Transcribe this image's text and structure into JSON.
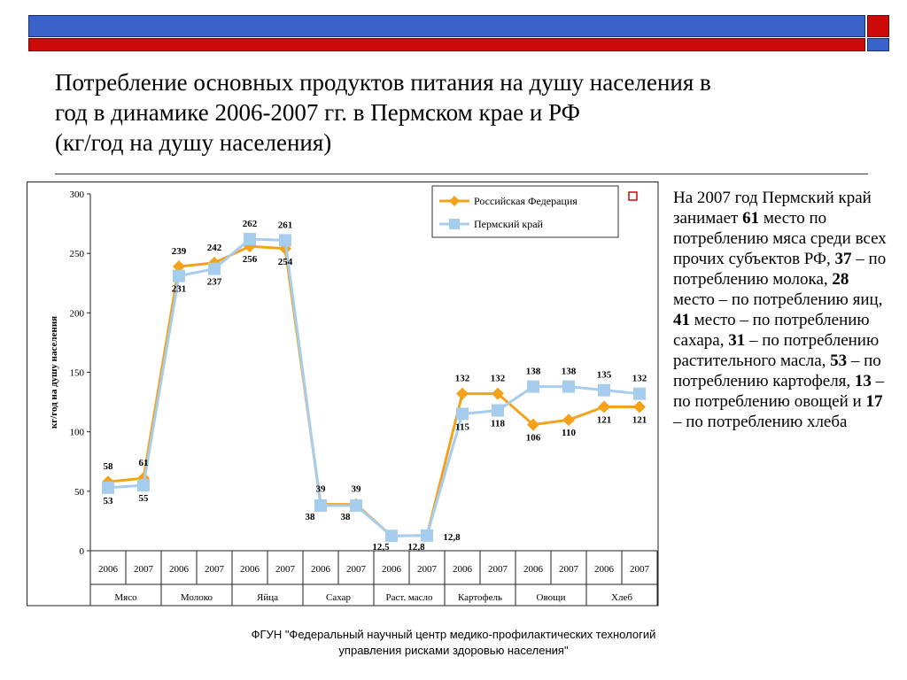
{
  "header": {
    "title_lines": [
      "Потребление основных продуктов питания на душу населения в",
      "год в динамике 2006-2007 гг. в Пермском крае и РФ",
      "(кг/год на душу населения)"
    ]
  },
  "colors": {
    "band_blue": "#3a63c9",
    "band_red": "#cc0a0a",
    "rf_series": "#f5a21b",
    "perm_series": "#a7cdee"
  },
  "chart_data": {
    "type": "line",
    "ylabel": "кг/год на душу населения",
    "ylim": [
      0,
      300
    ],
    "yticks": [
      0,
      50,
      100,
      150,
      200,
      250,
      300
    ],
    "grid": false,
    "legend_position": "top-right",
    "years": [
      "2006",
      "2007",
      "2006",
      "2007",
      "2006",
      "2007",
      "2006",
      "2007",
      "2006",
      "2007",
      "2006",
      "2007",
      "2006",
      "2007",
      "2006",
      "2007"
    ],
    "groups": [
      "Мясо",
      "Молоко",
      "Яйца",
      "Сахар",
      "Раст. масло",
      "Картофель",
      "Овощи",
      "Хлеб"
    ],
    "series": [
      {
        "name": "Российская Федерация",
        "color": "#f5a21b",
        "marker": "diamond",
        "values": [
          58,
          61,
          239,
          242,
          256,
          254,
          39,
          39,
          12.5,
          12.8,
          132,
          132,
          106,
          110,
          121,
          121
        ],
        "labels": [
          "58",
          "61",
          "239",
          "242",
          "256",
          "254",
          "39",
          "39",
          "",
          "",
          "132",
          "132",
          "106",
          "110",
          "121",
          "121"
        ]
      },
      {
        "name": "Пермский край",
        "color": "#a7cdee",
        "marker": "square",
        "values": [
          53,
          55,
          231,
          237,
          262,
          261,
          38,
          38,
          12.5,
          12.8,
          115,
          118,
          138,
          138,
          135,
          132
        ],
        "labels": [
          "53",
          "55",
          "231",
          "237",
          "262",
          "261",
          "38",
          "38",
          "12,5",
          "12,8",
          "115",
          "118",
          "138",
          "138",
          "135",
          "132"
        ]
      }
    ],
    "extra_labels": [
      "12,8"
    ]
  },
  "side_text": {
    "p1": "На 2007 год Пермский край занимает ",
    "n1": "61",
    "p2": " место по потреблению мяса  среди всех прочих субъектов РФ, ",
    "n2": "37",
    "p3": " – по потреблению молока, ",
    "n3": "28",
    "p4": " место – по потреблению яиц, ",
    "n4": "41",
    "p5": " место – по потреблению сахара, ",
    "n5": "31",
    "p6": " – по потреблению растительного масла, ",
    "n6": "53",
    "p7": " – по потреблению картофеля, ",
    "n7": "13",
    "p8": " – по потреблению овощей и ",
    "n8": "17",
    "p9": " – по потреблению хлеба"
  },
  "footer": {
    "line1": "ФГУН \"Федеральный научный центр медико-профилактических технологий",
    "line2": "управления рисками здоровью населения\""
  }
}
